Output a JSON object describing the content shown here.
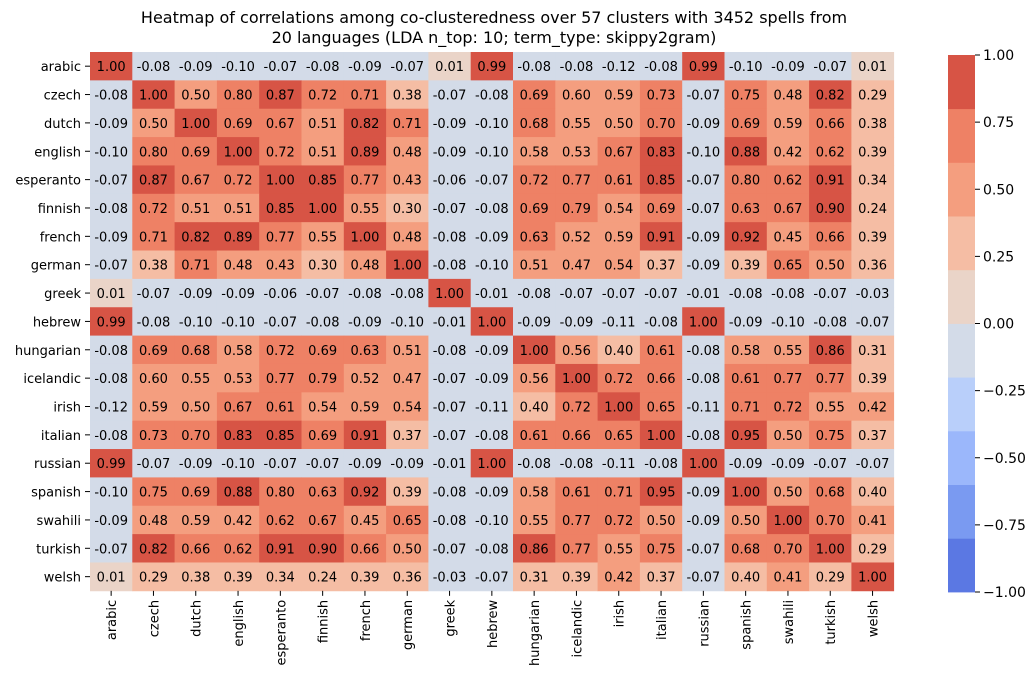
{
  "chart_data": {
    "type": "heatmap",
    "title": "Heatmap of correlations among co-clusteredness over 57 clusters with 3452 spells from 20 languages (LDA n_top: 10; term_type: skippy2gram)",
    "title_lines": [
      "Heatmap of correlations among co-clusteredness over 57 clusters with 3452 spells from",
      "20 languages (LDA n_top: 10; term_type: skippy2gram)"
    ],
    "labels": [
      "arabic",
      "czech",
      "dutch",
      "english",
      "esperanto",
      "finnish",
      "french",
      "german",
      "greek",
      "hebrew",
      "hungarian",
      "icelandic",
      "irish",
      "italian",
      "russian",
      "spanish",
      "swahili",
      "turkish",
      "welsh"
    ],
    "values": [
      [
        1.0,
        -0.08,
        -0.09,
        -0.1,
        -0.07,
        -0.08,
        -0.09,
        -0.07,
        0.01,
        0.99,
        -0.08,
        -0.08,
        -0.12,
        -0.08,
        0.99,
        -0.1,
        -0.09,
        -0.07,
        0.01
      ],
      [
        -0.08,
        1.0,
        0.5,
        0.8,
        0.87,
        0.72,
        0.71,
        0.38,
        -0.07,
        -0.08,
        0.69,
        0.6,
        0.59,
        0.73,
        -0.07,
        0.75,
        0.48,
        0.82,
        0.29
      ],
      [
        -0.09,
        0.5,
        1.0,
        0.69,
        0.67,
        0.51,
        0.82,
        0.71,
        -0.09,
        -0.1,
        0.68,
        0.55,
        0.5,
        0.7,
        -0.09,
        0.69,
        0.59,
        0.66,
        0.38
      ],
      [
        -0.1,
        0.8,
        0.69,
        1.0,
        0.72,
        0.51,
        0.89,
        0.48,
        -0.09,
        -0.1,
        0.58,
        0.53,
        0.67,
        0.83,
        -0.1,
        0.88,
        0.42,
        0.62,
        0.39
      ],
      [
        -0.07,
        0.87,
        0.67,
        0.72,
        1.0,
        0.85,
        0.77,
        0.43,
        -0.06,
        -0.07,
        0.72,
        0.77,
        0.61,
        0.85,
        -0.07,
        0.8,
        0.62,
        0.91,
        0.34
      ],
      [
        -0.08,
        0.72,
        0.51,
        0.51,
        0.85,
        1.0,
        0.55,
        0.3,
        -0.07,
        -0.08,
        0.69,
        0.79,
        0.54,
        0.69,
        -0.07,
        0.63,
        0.67,
        0.9,
        0.24
      ],
      [
        -0.09,
        0.71,
        0.82,
        0.89,
        0.77,
        0.55,
        1.0,
        0.48,
        -0.08,
        -0.09,
        0.63,
        0.52,
        0.59,
        0.91,
        -0.09,
        0.92,
        0.45,
        0.66,
        0.39
      ],
      [
        -0.07,
        0.38,
        0.71,
        0.48,
        0.43,
        0.3,
        0.48,
        1.0,
        -0.08,
        -0.1,
        0.51,
        0.47,
        0.54,
        0.37,
        -0.09,
        0.39,
        0.65,
        0.5,
        0.36
      ],
      [
        0.01,
        -0.07,
        -0.09,
        -0.09,
        -0.06,
        -0.07,
        -0.08,
        -0.08,
        1.0,
        -0.01,
        -0.08,
        -0.07,
        -0.07,
        -0.07,
        -0.01,
        -0.08,
        -0.08,
        -0.07,
        -0.03
      ],
      [
        0.99,
        -0.08,
        -0.1,
        -0.1,
        -0.07,
        -0.08,
        -0.09,
        -0.1,
        -0.01,
        1.0,
        -0.09,
        -0.09,
        -0.11,
        -0.08,
        1.0,
        -0.09,
        -0.1,
        -0.08,
        -0.07
      ],
      [
        -0.08,
        0.69,
        0.68,
        0.58,
        0.72,
        0.69,
        0.63,
        0.51,
        -0.08,
        -0.09,
        1.0,
        0.56,
        0.4,
        0.61,
        -0.08,
        0.58,
        0.55,
        0.86,
        0.31
      ],
      [
        -0.08,
        0.6,
        0.55,
        0.53,
        0.77,
        0.79,
        0.52,
        0.47,
        -0.07,
        -0.09,
        0.56,
        1.0,
        0.72,
        0.66,
        -0.08,
        0.61,
        0.77,
        0.77,
        0.39
      ],
      [
        -0.12,
        0.59,
        0.5,
        0.67,
        0.61,
        0.54,
        0.59,
        0.54,
        -0.07,
        -0.11,
        0.4,
        0.72,
        1.0,
        0.65,
        -0.11,
        0.71,
        0.72,
        0.55,
        0.42
      ],
      [
        -0.08,
        0.73,
        0.7,
        0.83,
        0.85,
        0.69,
        0.91,
        0.37,
        -0.07,
        -0.08,
        0.61,
        0.66,
        0.65,
        1.0,
        -0.08,
        0.95,
        0.5,
        0.75,
        0.37
      ],
      [
        0.99,
        -0.07,
        -0.09,
        -0.1,
        -0.07,
        -0.07,
        -0.09,
        -0.09,
        -0.01,
        1.0,
        -0.08,
        -0.08,
        -0.11,
        -0.08,
        1.0,
        -0.09,
        -0.09,
        -0.07,
        -0.07
      ],
      [
        -0.1,
        0.75,
        0.69,
        0.88,
        0.8,
        0.63,
        0.92,
        0.39,
        -0.08,
        -0.09,
        0.58,
        0.61,
        0.71,
        0.95,
        -0.09,
        1.0,
        0.5,
        0.68,
        0.4
      ],
      [
        -0.09,
        0.48,
        0.59,
        0.42,
        0.62,
        0.67,
        0.45,
        0.65,
        -0.08,
        -0.1,
        0.55,
        0.77,
        0.72,
        0.5,
        -0.09,
        0.5,
        1.0,
        0.7,
        0.41
      ],
      [
        -0.07,
        0.82,
        0.66,
        0.62,
        0.91,
        0.9,
        0.66,
        0.5,
        -0.07,
        -0.08,
        0.86,
        0.77,
        0.55,
        0.75,
        -0.07,
        0.68,
        0.7,
        1.0,
        0.29
      ],
      [
        0.01,
        0.29,
        0.38,
        0.39,
        0.34,
        0.24,
        0.39,
        0.36,
        -0.03,
        -0.07,
        0.31,
        0.39,
        0.42,
        0.37,
        -0.07,
        0.4,
        0.41,
        0.29,
        1.0
      ]
    ],
    "colorbar": {
      "ticks": [
        "1.00",
        "0.75",
        "0.50",
        "0.25",
        "0.00",
        "−0.25",
        "−0.50",
        "−0.75",
        "−1.00"
      ],
      "range": [
        -1.0,
        1.0
      ],
      "levels": 8,
      "colors_low_to_high": [
        "#5b78e3",
        "#7a9af1",
        "#9bb7fb",
        "#b9cffa",
        "#d3dbe8",
        "#ead4c8",
        "#f5bda4",
        "#f49e7f",
        "#ee8165",
        "#d75445"
      ],
      "level_edges": [
        -1.0,
        -0.8,
        -0.6,
        -0.4,
        -0.2,
        0.0,
        0.2,
        0.4,
        0.6,
        0.8,
        1.0
      ]
    },
    "xlabel": "",
    "ylabel": ""
  }
}
